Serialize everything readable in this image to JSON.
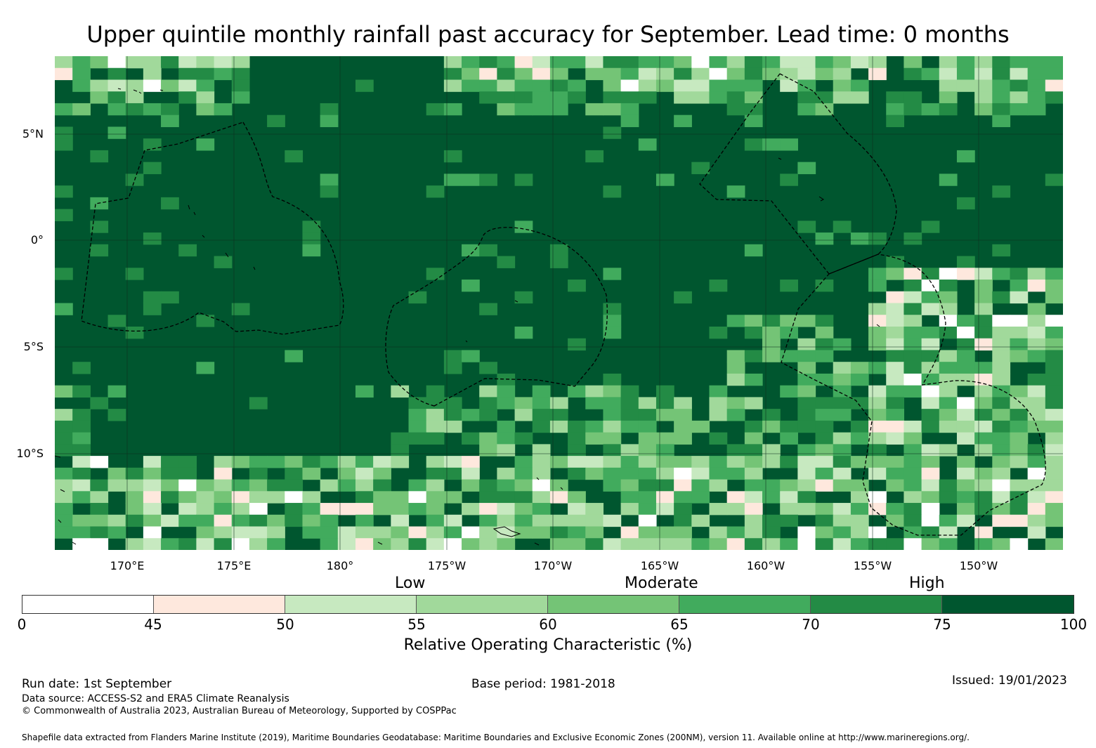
{
  "title": "Upper quintile monthly rainfall past accuracy for September. Lead time: 0 months",
  "map": {
    "lat_labels": [
      "5°N",
      "0°",
      "5°S",
      "10°S"
    ],
    "lon_labels": [
      "170°E",
      "175°E",
      "180°",
      "175°W",
      "170°W",
      "165°W",
      "160°W",
      "155°W",
      "150°W"
    ],
    "colors": {
      "c0": "#ffffff",
      "c45": "#fee8dd",
      "c50": "#c7e9c0",
      "c55": "#a1d99b",
      "c60": "#74c476",
      "c65": "#41ab5d",
      "c70": "#238b45",
      "c75": "#00562f",
      "outline": "#000000",
      "grid": "#1a3a26"
    }
  },
  "legend": {
    "categories": [
      "Low",
      "Moderate",
      "High"
    ],
    "ticks": [
      "0",
      "45",
      "50",
      "55",
      "60",
      "65",
      "70",
      "75",
      "100"
    ],
    "bins": [
      {
        "from": 0,
        "to": 45,
        "color": "#ffffff"
      },
      {
        "from": 45,
        "to": 50,
        "color": "#fee8dd"
      },
      {
        "from": 50,
        "to": 55,
        "color": "#c7e9c0"
      },
      {
        "from": 55,
        "to": 60,
        "color": "#a1d99b"
      },
      {
        "from": 60,
        "to": 65,
        "color": "#74c476"
      },
      {
        "from": 65,
        "to": 70,
        "color": "#41ab5d"
      },
      {
        "from": 70,
        "to": 75,
        "color": "#238b45"
      },
      {
        "from": 75,
        "to": 100,
        "color": "#00562f"
      }
    ],
    "label": "Relative Operating Characteristic (%)"
  },
  "footer": {
    "run_date": "Run date: 1st September",
    "base_period": "Base period: 1981-2018",
    "issued": "Issued: 19/01/2023",
    "data_source": "Data source: ACCESS-S2 and ERA5 Climate Reanalysis",
    "copyright": "© Commonwealth of Australia 2023, Australian Bureau of Meteorology, Supported by COSPPac",
    "shapefile": "Shapefile data extracted from Flanders Marine Institute (2019), Maritime Boundaries Geodatabase: Maritime Boundaries and Exclusive Economic Zones (200NM), version 11. Available online at http://www.marineregions.org/."
  }
}
